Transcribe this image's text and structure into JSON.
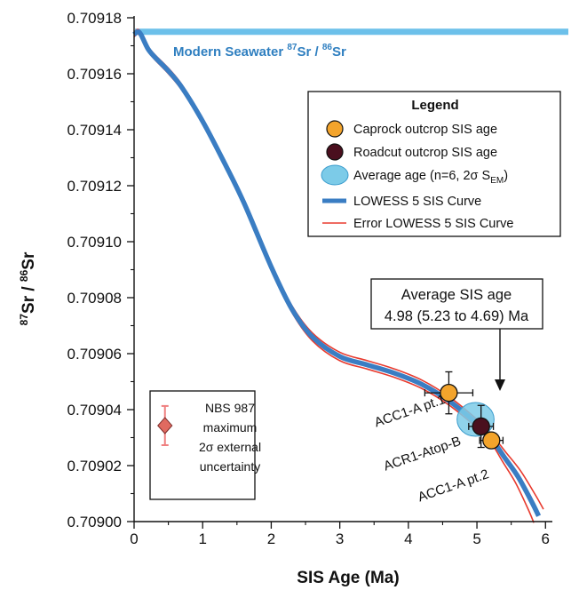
{
  "colors": {
    "caprock": "#f3a42c",
    "roadcut": "#4a0f1e",
    "average": "#7ccbe8",
    "curve": "#3a7dc3",
    "error": "#e83a2e",
    "seawater": "#6cc0ea",
    "nbs_bar": "#ef7f7f",
    "nbs_marker": "#e06a60"
  },
  "chart_data": {
    "type": "line",
    "xlabel": "SIS Age (Ma)",
    "ylabel_parts": {
      "sup1": "87",
      "mid": "Sr / ",
      "sup2": "86",
      "end": "Sr"
    },
    "xlim": [
      0,
      6.1
    ],
    "ylim": [
      0.709,
      0.70918
    ],
    "x_ticks": [
      0,
      1,
      2,
      3,
      4,
      5,
      6
    ],
    "x_tick_labels": [
      "0",
      "1",
      "2",
      "3",
      "4",
      "5",
      "6"
    ],
    "y_ticks": [
      0.709,
      0.70902,
      0.70904,
      0.70906,
      0.70908,
      0.7091,
      0.70912,
      0.70914,
      0.70916,
      0.70918
    ],
    "y_tick_labels": [
      "0.70900",
      "0.70902",
      "0.70904",
      "0.70906",
      "0.70908",
      "0.70910",
      "0.70912",
      "0.70914",
      "0.70916",
      "0.70918"
    ],
    "seawater": {
      "value": 0.709175,
      "label_parts": {
        "pre": "Modern Seawater ",
        "sup1": "87",
        "mid": "Sr / ",
        "sup2": "86",
        "end": "Sr"
      }
    },
    "lowess_curve": {
      "name": "LOWESS 5 SIS Curve",
      "x": [
        0,
        0.05,
        0.1,
        0.2,
        0.3,
        0.5,
        0.7,
        1.0,
        1.3,
        1.6,
        2.0,
        2.3,
        2.6,
        3.0,
        3.4,
        3.8,
        4.2,
        4.6,
        5.0,
        5.2,
        5.4,
        5.6,
        5.8,
        5.9
      ],
      "y": [
        0.709174,
        0.709175,
        0.709174,
        0.709169,
        0.709166,
        0.709161,
        0.709155,
        0.709143,
        0.709129,
        0.709114,
        0.709091,
        0.709076,
        0.709066,
        0.709059,
        0.709056,
        0.709053,
        0.709049,
        0.709043,
        0.709035,
        0.70903,
        0.709023,
        0.709016,
        0.709007,
        0.709002
      ]
    },
    "error_offset": [
      8e-07,
      8e-07,
      8e-07,
      9e-07,
      9e-07,
      1e-06,
      1e-06,
      1e-06,
      1e-06,
      1e-06,
      1e-06,
      1.2e-06,
      1.4e-06,
      1.5e-06,
      1.5e-06,
      1.5e-06,
      1.5e-06,
      1.5e-06,
      1.5e-06,
      1.6e-06,
      1.8e-06,
      2e-06,
      2.2e-06,
      2.4e-06
    ],
    "error_shift": [
      0,
      0,
      0,
      0,
      0,
      0,
      0,
      0,
      0,
      0,
      0,
      0,
      0,
      0,
      0,
      0,
      0,
      0,
      0,
      0,
      0.02,
      0.04,
      0.06,
      0.07
    ],
    "points": [
      {
        "label": "ACC1-A pt.1",
        "type": "caprock",
        "x": 4.59,
        "y": 0.709046,
        "xerr": 0.35,
        "yerr": 7.5e-06
      },
      {
        "label": "ACR1-Atop-B",
        "type": "roadcut",
        "x": 5.06,
        "y": 0.709034,
        "xerr": 0.18,
        "yerr": 7.5e-06
      },
      {
        "label": "ACC1-A pt.2",
        "type": "caprock",
        "x": 5.21,
        "y": 0.709029,
        "xerr": 0.17,
        "yerr": 2e-06
      }
    ],
    "average": {
      "x": 4.98,
      "y": 0.7090365,
      "x_low": 4.69,
      "x_high": 5.23
    },
    "legend": {
      "title": "Legend",
      "items": [
        {
          "label": "Caprock outcrop SIS age",
          "kind": "caprock"
        },
        {
          "label": "Roadcut outcrop SIS age",
          "kind": "roadcut"
        },
        {
          "label_main": "Average age (n=6, 2σ S",
          "label_sub": "EM",
          "label_end": ")",
          "kind": "average"
        },
        {
          "label": "LOWESS 5 SIS Curve",
          "kind": "curve"
        },
        {
          "label": "Error LOWESS 5 SIS Curve",
          "kind": "error"
        }
      ]
    },
    "callout": {
      "line1": "Average SIS age",
      "line2": "4.98 (5.23 to 4.69) Ma"
    },
    "nbs": {
      "lines": [
        "NBS 987",
        "maximum",
        "2σ external",
        "uncertainty"
      ],
      "x": 0.45,
      "y": 0.7090343,
      "err": 7e-06
    }
  }
}
